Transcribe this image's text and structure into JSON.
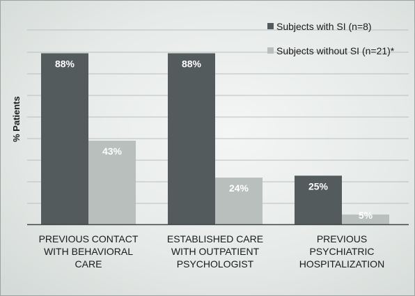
{
  "colors": {
    "series1": "#535b5d",
    "series2": "#b8bfbd",
    "grid": "#b9c0bd",
    "axis": "#3f4446",
    "text": "#1a1a1a",
    "bar_label": "#ffffff"
  },
  "chart_data": {
    "type": "bar",
    "title": "",
    "xlabel": "",
    "ylabel": "% Patients",
    "ylim": [
      0,
      100
    ],
    "grid": true,
    "legend_position": "top-right",
    "categories": [
      [
        "PREVIOUS CONTACT",
        "WITH BEHAVIORAL",
        "CARE"
      ],
      [
        "ESTABLISHED CARE",
        "WITH OUTPATIENT",
        "PSYCHOLOGIST"
      ],
      [
        "PREVIOUS",
        "PSYCHIATRIC",
        "HOSPITALIZATION"
      ]
    ],
    "series": [
      {
        "name": "Subjects with SI (n=8)",
        "values": [
          88,
          88,
          25
        ],
        "labels": [
          "88%",
          "88%",
          "25%"
        ]
      },
      {
        "name": "Subjects without SI (n=21)*",
        "values": [
          43,
          24,
          5
        ],
        "labels": [
          "43%",
          "24%",
          "5%"
        ]
      }
    ]
  }
}
